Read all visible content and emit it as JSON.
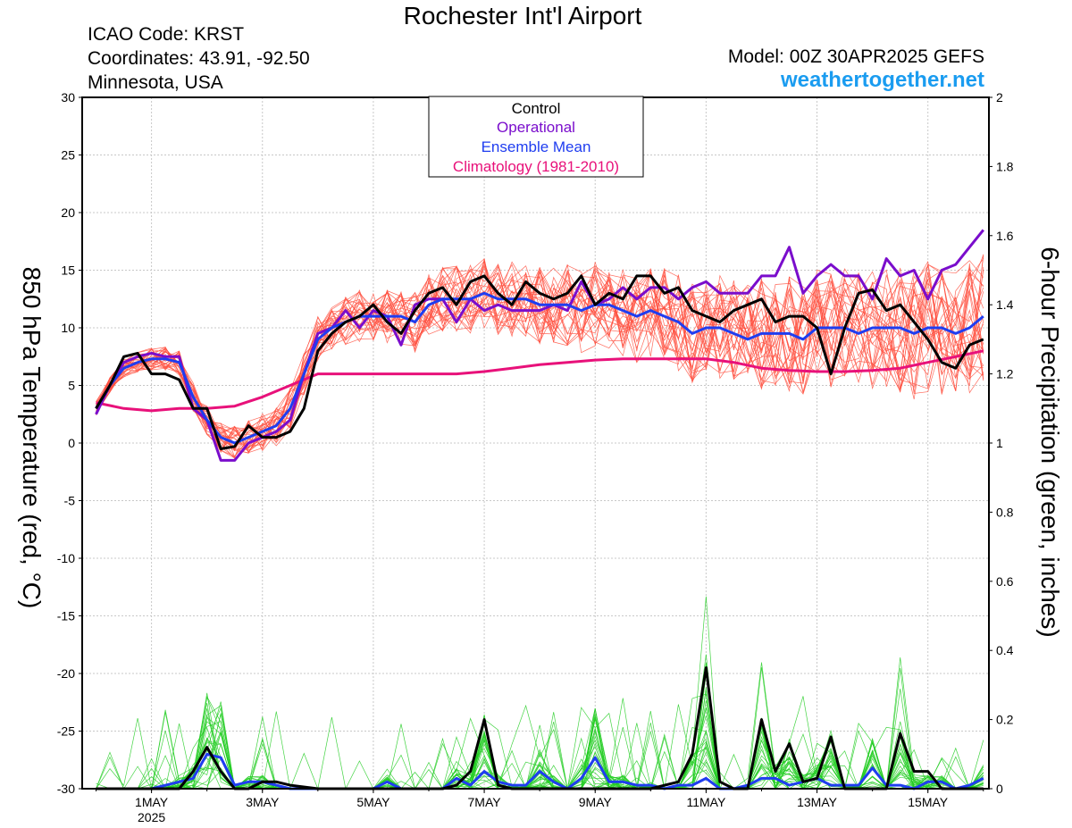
{
  "header": {
    "title": "Rochester Int'l Airport",
    "icao": "ICAO Code: KRST",
    "coordinates": "Coordinates: 43.91, -92.50",
    "region": "Minnesota, USA",
    "model": "Model: 00Z 30APR2025 GEFS",
    "site": "weathertogether.net"
  },
  "colors": {
    "control": "#000000",
    "operational": "#7a0dcc",
    "ensemble_mean": "#1f3df0",
    "climatology": "#e8117a",
    "members_temp": "#ff5040",
    "members_precip": "#22cc22",
    "site": "#1a9cf0"
  },
  "chart_data": {
    "type": "line",
    "ylabel_left": "850 hPa Temperature (red, °C)",
    "ylabel_right": "6-hour Precipitation (green, inches)",
    "ylim_left": [
      -30,
      30
    ],
    "ylim_right": [
      0,
      2
    ],
    "yticks_left": [
      "30",
      "25",
      "20",
      "15",
      "10",
      "5",
      "0",
      "-5",
      "-10",
      "-15",
      "-20",
      "-25",
      "-30"
    ],
    "yticks_right": [
      "2",
      "1.8",
      "1.6",
      "1.4",
      "1.2",
      "1",
      "0.8",
      "0.6",
      "0.4",
      "0.2",
      "0"
    ],
    "xticks": [
      "1MAY",
      "3MAY",
      "5MAY",
      "7MAY",
      "9MAY",
      "11MAY",
      "13MAY",
      "15MAY"
    ],
    "xtick_year": "2025",
    "grid": true,
    "legend_position": "top-center",
    "legend": [
      "Control",
      "Operational",
      "Ensemble Mean",
      "Climatology (1981-2010)"
    ],
    "time_unit": "days from 30APR2025 00Z",
    "series": [
      {
        "name": "Control",
        "axis": "left",
        "x": [
          0,
          0.25,
          0.5,
          0.75,
          1,
          1.25,
          1.5,
          1.75,
          2,
          2.25,
          2.5,
          2.75,
          3,
          3.25,
          3.5,
          3.75,
          4,
          4.25,
          4.5,
          4.75,
          5,
          5.25,
          5.5,
          5.75,
          6,
          6.25,
          6.5,
          6.75,
          7,
          7.25,
          7.5,
          7.75,
          8,
          8.25,
          8.5,
          8.75,
          9,
          9.25,
          9.5,
          9.75,
          10,
          10.25,
          10.5,
          10.75,
          11,
          11.25,
          11.5,
          11.75,
          12,
          12.25,
          12.5,
          12.75,
          13,
          13.25,
          13.5,
          13.75,
          14,
          14.25,
          14.5,
          14.75,
          15,
          15.25,
          15.5,
          15.75,
          16
        ],
        "values": [
          3,
          5,
          7.5,
          7.8,
          6,
          6,
          5.5,
          3,
          3,
          -0.5,
          -0.3,
          1.5,
          0.5,
          0.5,
          1,
          3,
          8,
          9.5,
          10.5,
          11,
          12,
          10.5,
          9.5,
          11.5,
          13,
          13.5,
          12,
          14,
          14.5,
          13,
          12,
          14,
          13,
          12.5,
          13,
          14.5,
          12,
          13,
          12.5,
          14.5,
          14.5,
          13,
          13.5,
          11.5,
          11,
          10.5,
          11.5,
          12,
          12.5,
          10.5,
          11,
          11,
          10,
          6,
          10,
          13,
          13.3,
          11.5,
          12,
          10.5,
          9,
          7,
          6.5,
          8.5,
          9
        ]
      },
      {
        "name": "Operational",
        "axis": "left",
        "x": [
          0,
          0.25,
          0.5,
          0.75,
          1,
          1.25,
          1.5,
          1.75,
          2,
          2.25,
          2.5,
          2.75,
          3,
          3.25,
          3.5,
          3.75,
          4,
          4.25,
          4.5,
          4.75,
          5,
          5.25,
          5.5,
          5.75,
          6,
          6.25,
          6.5,
          6.75,
          7,
          7.25,
          7.5,
          7.75,
          8,
          8.25,
          8.5,
          8.75,
          9,
          9.25,
          9.5,
          9.75,
          10,
          10.25,
          10.5,
          10.75,
          11,
          11.25,
          11.5,
          11.75,
          12,
          12.25,
          12.5,
          12.75,
          13,
          13.25,
          13.5,
          13.75,
          14,
          14.25,
          14.5,
          14.75,
          15,
          15.25,
          15.5,
          15.75,
          16
        ],
        "values": [
          2.5,
          5,
          7,
          7.5,
          7.8,
          7.5,
          7.5,
          3,
          2,
          -1.5,
          -1.5,
          0,
          0.5,
          1,
          2,
          6,
          9.5,
          10,
          11.5,
          10,
          11.5,
          11,
          8.5,
          12,
          12.5,
          12.5,
          10.5,
          12.5,
          11.5,
          12,
          11.5,
          11.5,
          11.5,
          12,
          11.5,
          14,
          12,
          12.5,
          13.5,
          12.5,
          13.5,
          13.5,
          12.5,
          13.5,
          14,
          13,
          13,
          13,
          14.5,
          14.5,
          17,
          13,
          14.5,
          15.5,
          14.5,
          14.5,
          12.5,
          16,
          14.5,
          15,
          12.5,
          15,
          15.5,
          17,
          18.5
        ]
      },
      {
        "name": "Ensemble Mean",
        "axis": "left",
        "x": [
          0,
          0.25,
          0.5,
          0.75,
          1,
          1.25,
          1.5,
          1.75,
          2,
          2.25,
          2.5,
          2.75,
          3,
          3.25,
          3.5,
          3.75,
          4,
          4.25,
          4.5,
          4.75,
          5,
          5.25,
          5.5,
          5.75,
          6,
          6.25,
          6.5,
          6.75,
          7,
          7.25,
          7.5,
          7.75,
          8,
          8.25,
          8.5,
          8.75,
          9,
          9.25,
          9.5,
          9.75,
          10,
          10.25,
          10.5,
          10.75,
          11,
          11.25,
          11.5,
          11.75,
          12,
          12.25,
          12.5,
          12.75,
          13,
          13.25,
          13.5,
          13.75,
          14,
          14.25,
          14.5,
          14.75,
          15,
          15.25,
          15.5,
          15.75,
          16
        ],
        "values": [
          3,
          5,
          6.5,
          7,
          7.3,
          7.3,
          7,
          4,
          2,
          0.5,
          0,
          0.5,
          1,
          1.5,
          3,
          6,
          9,
          10,
          10.5,
          11,
          11,
          11,
          11,
          10.5,
          12,
          12.5,
          12.5,
          12.5,
          13,
          12.5,
          12.5,
          12.5,
          12,
          12,
          12,
          11.5,
          12,
          12,
          11.5,
          11,
          11.5,
          11,
          10.5,
          9.5,
          10,
          10,
          9.5,
          9,
          9.5,
          9.5,
          9.5,
          9,
          10,
          10,
          10,
          9.5,
          10,
          10,
          10,
          9.5,
          10,
          10,
          9.5,
          10,
          11
        ]
      },
      {
        "name": "Climatology (1981-2010)",
        "axis": "left",
        "x": [
          0,
          0.5,
          1,
          1.5,
          2,
          2.5,
          3,
          3.5,
          4,
          4.5,
          5,
          5.5,
          6,
          6.5,
          7,
          7.5,
          8,
          8.5,
          9,
          9.5,
          10,
          10.5,
          11,
          11.5,
          12,
          12.5,
          13,
          13.5,
          14,
          14.5,
          15,
          15.5,
          16
        ],
        "values": [
          3.5,
          3,
          2.8,
          3,
          3,
          3.2,
          4,
          5,
          6,
          6,
          6,
          6,
          6,
          6,
          6.2,
          6.5,
          6.8,
          7,
          7.2,
          7.3,
          7.3,
          7.3,
          7.3,
          7,
          6.5,
          6.3,
          6.2,
          6.2,
          6.3,
          6.5,
          7,
          7.5,
          8
        ]
      },
      {
        "name": "Control Precip",
        "axis": "right",
        "x": [
          0,
          1,
          1.5,
          1.75,
          2,
          2.25,
          2.5,
          2.75,
          3,
          3.25,
          3.5,
          4,
          5,
          5.75,
          6,
          6.25,
          6.5,
          6.75,
          7,
          7.25,
          7.5,
          8,
          9,
          10,
          10.5,
          10.75,
          11,
          11.25,
          11.5,
          11.75,
          12,
          12.25,
          12.5,
          12.75,
          13,
          13.25,
          13.5,
          13.75,
          14,
          14.25,
          14.5,
          14.75,
          15,
          15.25,
          15.5,
          16
        ],
        "values": [
          0,
          0,
          0,
          0.05,
          0.12,
          0.05,
          0,
          0,
          0.02,
          0.02,
          0.01,
          0,
          0,
          0,
          0,
          0,
          0.01,
          0.05,
          0.2,
          0.01,
          0,
          0,
          0,
          0,
          0.02,
          0.1,
          0.35,
          0.02,
          0,
          0,
          0.2,
          0.05,
          0.13,
          0.02,
          0.03,
          0.15,
          0,
          0,
          0,
          0,
          0.16,
          0.05,
          0.05,
          0,
          0,
          0
        ]
      },
      {
        "name": "Ensemble Mean Precip",
        "axis": "right",
        "x": [
          0,
          1,
          1.5,
          1.75,
          2,
          2.25,
          2.5,
          2.75,
          3,
          3.25,
          3.5,
          4,
          5,
          5.25,
          5.5,
          5.75,
          6,
          6.25,
          6.5,
          6.75,
          7,
          7.25,
          7.5,
          7.75,
          8,
          8.25,
          8.5,
          8.75,
          9,
          9.25,
          9.5,
          9.75,
          10,
          10.25,
          10.5,
          10.75,
          11,
          11.25,
          11.5,
          11.75,
          12,
          12.25,
          12.5,
          12.75,
          13,
          13.25,
          13.5,
          13.75,
          14,
          14.25,
          14.5,
          14.75,
          15,
          15.25,
          15.5,
          15.75,
          16
        ],
        "values": [
          0,
          0,
          0.02,
          0.03,
          0.1,
          0.09,
          0.01,
          0.02,
          0.02,
          0.01,
          0,
          0,
          0,
          0.02,
          0,
          0,
          0,
          0,
          0.03,
          0.01,
          0.05,
          0.02,
          0.01,
          0.01,
          0.05,
          0.02,
          0,
          0.03,
          0.09,
          0.02,
          0.02,
          0.01,
          0.01,
          0,
          0.01,
          0.01,
          0.03,
          0,
          0,
          0.01,
          0.03,
          0.03,
          0.01,
          0.02,
          0.03,
          0.01,
          0.01,
          0.01,
          0.06,
          0.01,
          0.01,
          0,
          0.02,
          0.02,
          0,
          0.01,
          0.03
        ]
      }
    ]
  }
}
